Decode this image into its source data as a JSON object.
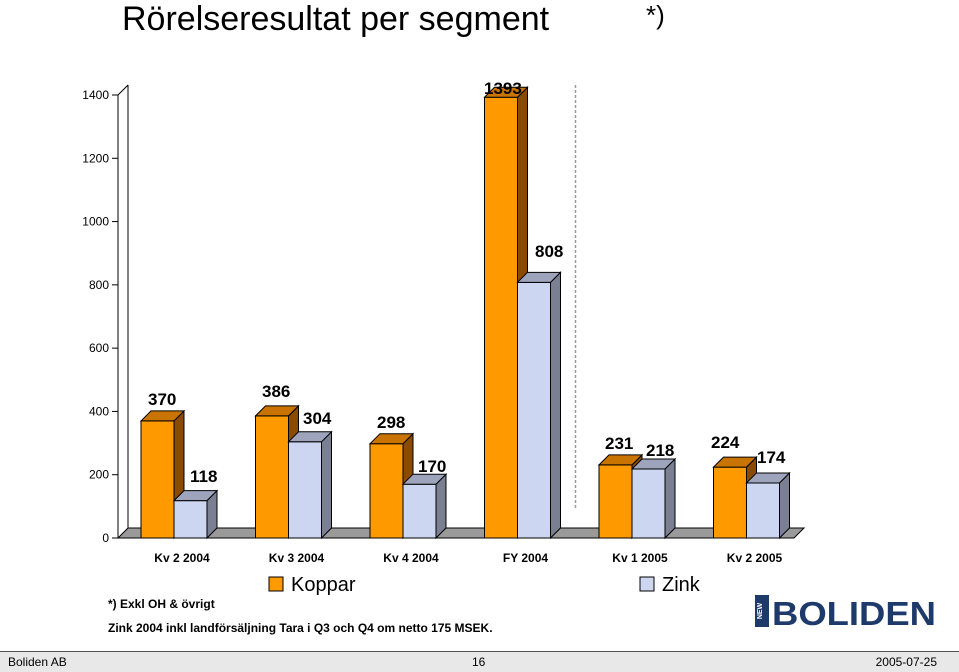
{
  "slide": {
    "title": "Rörelseresultat per segment",
    "title_mark": "*)",
    "footnote_1": "*) Exkl OH & övrigt",
    "footnote_2": "Zink 2004 inkl landförsäljning Tara i Q3 och Q4 om netto 175 MSEK."
  },
  "footer": {
    "left": "Boliden AB",
    "page": "16",
    "date": "2005-07-25"
  },
  "logo": {
    "word": "BOLIDEN",
    "badge": "NEW",
    "icon": "boliden-logo"
  },
  "colors": {
    "koppar": "#FF9900",
    "zink": "#CCD6F0"
  },
  "chart_data": {
    "type": "bar",
    "categories": [
      "Kv 2 2004",
      "Kv 3 2004",
      "Kv 4 2004",
      "FY 2004",
      "Kv 1 2005",
      "Kv 2 2005"
    ],
    "series": [
      {
        "name": "Koppar",
        "values": [
          370,
          386,
          298,
          1393,
          231,
          224
        ]
      },
      {
        "name": "Zink",
        "values": [
          118,
          304,
          170,
          808,
          218,
          174
        ]
      }
    ],
    "ylim": [
      0,
      1400
    ],
    "yticks": [
      0,
      200,
      400,
      600,
      800,
      1000,
      1200,
      1400
    ],
    "grid": false,
    "three_d": true,
    "legend": "bottom",
    "separator_after_category": "FY 2004"
  }
}
